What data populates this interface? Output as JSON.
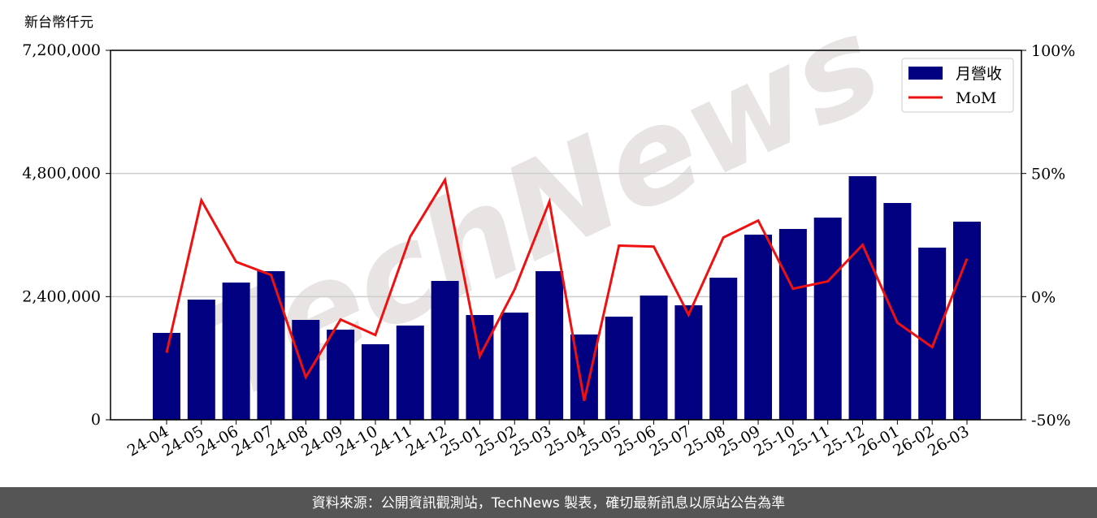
{
  "chart_data": {
    "type": "bar_line",
    "y_label": "新台幣仟元",
    "watermark": "TechNews",
    "footer": "資料來源：公開資訊觀測站，TechNews 製表，確切最新訊息以原站公告為準",
    "categories": [
      "24-04",
      "24-05",
      "24-06",
      "24-07",
      "24-08",
      "24-09",
      "24-10",
      "24-11",
      "24-12",
      "25-01",
      "25-02",
      "25-03",
      "25-04",
      "25-05",
      "25-06",
      "25-07",
      "25-08",
      "25-09",
      "25-10",
      "25-11",
      "25-12",
      "26-01",
      "26-02",
      "26-03"
    ],
    "series": [
      {
        "name": "月營收",
        "type": "bar",
        "color": "#000080",
        "values": [
          1693000,
          2342000,
          2674000,
          2896000,
          1946000,
          1756000,
          1472000,
          1836000,
          2706000,
          2041000,
          2089000,
          2896000,
          1662000,
          2010000,
          2421000,
          2231000,
          2769000,
          3608000,
          3719000,
          3940000,
          4747000,
          4225000,
          3355000,
          3861000
        ]
      },
      {
        "name": "MoM",
        "type": "line",
        "axis": "y2",
        "color": "#ee1111",
        "values": [
          -22.8,
          39.1,
          14.1,
          8.8,
          -32.7,
          -9.3,
          -15.6,
          24.3,
          47.4,
          -24.2,
          2.9,
          38.5,
          -42.3,
          20.7,
          20.3,
          -7.4,
          24.0,
          30.9,
          3.2,
          6.2,
          21.0,
          -10.6,
          -20.5,
          15.4
        ]
      }
    ],
    "ylim": [
      0,
      7200000
    ],
    "yticks": [
      {
        "value": 0,
        "label": "0"
      },
      {
        "value": 2400000,
        "label": "2,400,000"
      },
      {
        "value": 4800000,
        "label": "4,800,000"
      },
      {
        "value": 7200000,
        "label": "7,200,000"
      }
    ],
    "y2lim": [
      -50,
      100
    ],
    "y2ticks": [
      {
        "value": -50,
        "label": "-50%"
      },
      {
        "value": 0,
        "label": "0%"
      },
      {
        "value": 50,
        "label": "50%"
      },
      {
        "value": 100,
        "label": "100%"
      }
    ],
    "grid": true,
    "legend": "upper right"
  }
}
